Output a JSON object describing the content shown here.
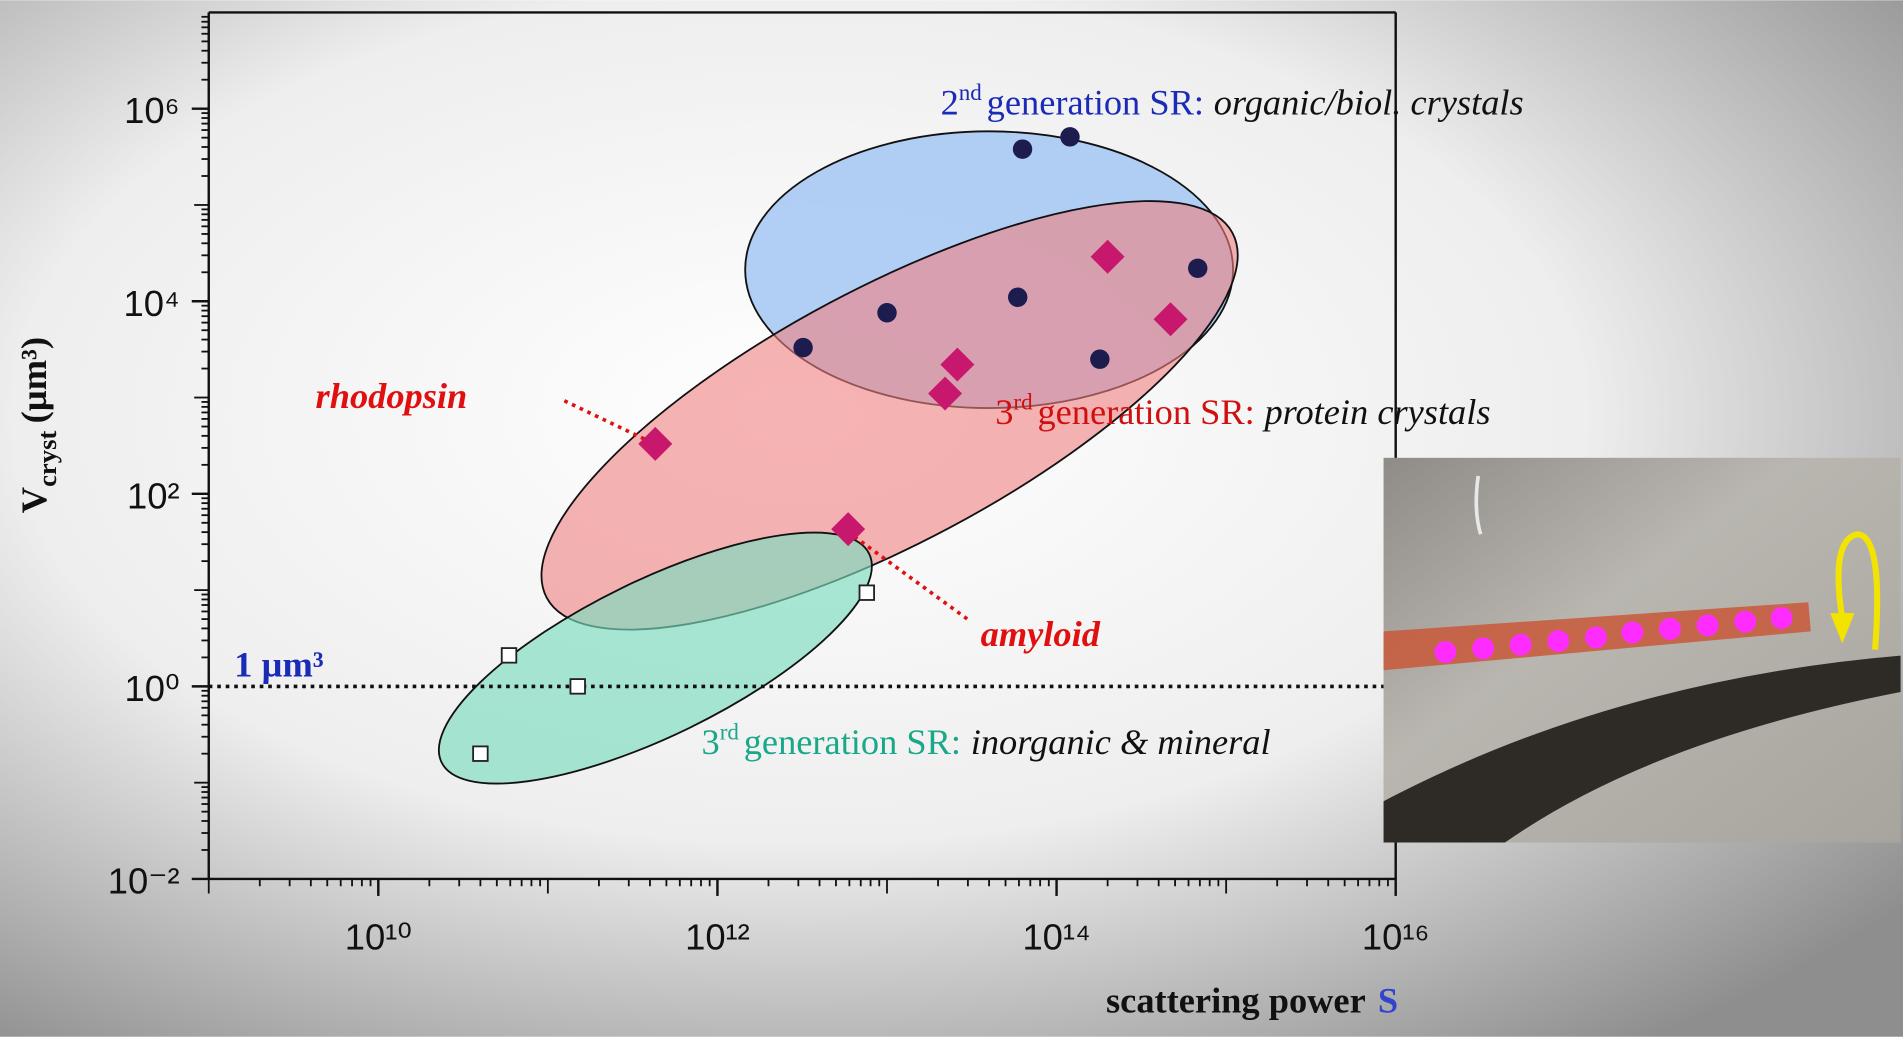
{
  "chart_data": {
    "type": "scatter",
    "log_x": true,
    "log_y": true,
    "xlim": [
      1000000000.0,
      1e+16
    ],
    "ylim": [
      0.01,
      10000000.0
    ],
    "xticks": [
      {
        "value": 10000000000.0,
        "label": "10¹⁰"
      },
      {
        "value": 1000000000000.0,
        "label": "10¹²"
      },
      {
        "value": 100000000000000.0,
        "label": "10¹⁴"
      },
      {
        "value": 1e+16,
        "label": "10¹⁶"
      }
    ],
    "yticks": [
      {
        "value": 0.01,
        "label": "10⁻²"
      },
      {
        "value": 1,
        "label": "10⁰"
      },
      {
        "value": 100,
        "label": "10²"
      },
      {
        "value": 10000,
        "label": "10⁴"
      },
      {
        "value": 1000000,
        "label": "10⁶"
      }
    ],
    "x_label": {
      "text": "scattering power",
      "symbol": "S"
    },
    "y_label": {
      "main": "V",
      "sub": "cryst",
      "unit": "(µm³)"
    },
    "reference_line": {
      "value": 1,
      "label": "1 µm³"
    },
    "series": [
      {
        "marker": "circle",
        "color": "#1c1c4e",
        "x": [
          63000000000000.0,
          120000000000000.0,
          680000000000000.0,
          59000000000000.0,
          10000000000000.0,
          3200000000000.0,
          180000000000000.0
        ],
        "y": [
          380000,
          510000,
          22000,
          11000,
          7600,
          3300,
          2500
        ]
      },
      {
        "marker": "diamond",
        "color": "#c8186e",
        "x": [
          200000000000000.0,
          470000000000000.0,
          26000000000000.0,
          22000000000000.0,
          430000000000.0,
          5900000000000.0
        ],
        "y": [
          29000,
          6500,
          2200,
          1100,
          330,
          43
        ]
      },
      {
        "marker": "square",
        "color": "#222222",
        "x": [
          59000000000.0,
          150000000000.0,
          40000000000.0,
          7600000000000.0
        ],
        "y": [
          2.1,
          1,
          0.2,
          9.4
        ]
      }
    ],
    "annotations": {
      "gen2": {
        "num": "2",
        "ord": "nd",
        "label": "generation SR:",
        "desc": "organic/biol. crystals"
      },
      "gen3_protein": {
        "num": "3",
        "ord": "rd",
        "label": "generation SR:",
        "desc": "protein crystals"
      },
      "gen3_inorganic": {
        "num": "3",
        "ord": "rd",
        "label": "generation SR:",
        "desc": "inorganic & mineral"
      },
      "rhodopsin": "rhodopsin",
      "amyloid": "amyloid"
    }
  }
}
